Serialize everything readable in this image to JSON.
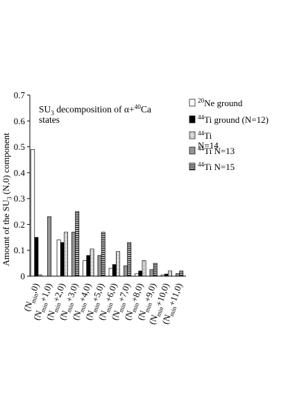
{
  "chart_data": {
    "type": "bar",
    "title": "SU3 decomposition of α+40Ca states",
    "title_rich": {
      "line1": [
        {
          "t": "SU",
          "s": "n"
        },
        {
          "t": "3",
          "s": "sub"
        },
        {
          "t": " decomposition of ",
          "s": "n"
        },
        {
          "t": "α",
          "s": "n"
        },
        {
          "t": "+",
          "s": "n"
        },
        {
          "t": "40",
          "s": "sup"
        },
        {
          "t": "Ca",
          "s": "n"
        }
      ],
      "line2": [
        {
          "t": "states",
          "s": "n"
        }
      ]
    },
    "ylabel": "Amount of the SU3 (N,0) component",
    "ylabel_rich": [
      {
        "t": "Amount of the SU",
        "s": "n"
      },
      {
        "t": "3",
        "s": "sub"
      },
      {
        "t": " (N,0) component",
        "s": "n"
      }
    ],
    "xlabel": "",
    "ylim": [
      0,
      0.7
    ],
    "yticks": [
      0,
      0.1,
      0.2,
      0.3,
      0.4,
      0.5,
      0.6,
      0.7
    ],
    "ytick_labels": [
      "0",
      "0.1",
      "0.2",
      "0.3",
      "0.4",
      "0.5",
      "0.6",
      "0.7"
    ],
    "categories": [
      "(Nmin,0)",
      "(Nmin+1,0)",
      "(Nmin+2,0)",
      "(Nmin+3,0)",
      "(Nmin+4,0)",
      "(Nmin+5,0)",
      "(Nmin+6,0)",
      "(Nmin+7,0)",
      "(Nmin+8,0)",
      "(Nmin+9,0)",
      "(Nmin+10,0)",
      "(Nmin+11,0)"
    ],
    "category_rich": [
      [
        {
          "t": "(N",
          "s": "n"
        },
        {
          "t": "min",
          "s": "sub"
        },
        {
          "t": ",0)",
          "s": "n"
        }
      ],
      [
        {
          "t": "(N",
          "s": "n"
        },
        {
          "t": "min",
          "s": "sub"
        },
        {
          "t": "+1,0)",
          "s": "n"
        }
      ],
      [
        {
          "t": "(N",
          "s": "n"
        },
        {
          "t": "min",
          "s": "sub"
        },
        {
          "t": "+2,0)",
          "s": "n"
        }
      ],
      [
        {
          "t": "(N",
          "s": "n"
        },
        {
          "t": "min",
          "s": "sub"
        },
        {
          "t": "+3,0)",
          "s": "n"
        }
      ],
      [
        {
          "t": "(N",
          "s": "n"
        },
        {
          "t": "min",
          "s": "sub"
        },
        {
          "t": "+4,0)",
          "s": "n"
        }
      ],
      [
        {
          "t": "(N",
          "s": "n"
        },
        {
          "t": "min",
          "s": "sub"
        },
        {
          "t": "+5,0)",
          "s": "n"
        }
      ],
      [
        {
          "t": "(N",
          "s": "n"
        },
        {
          "t": "min",
          "s": "sub"
        },
        {
          "t": "+6,0)",
          "s": "n"
        }
      ],
      [
        {
          "t": "(N",
          "s": "n"
        },
        {
          "t": "min",
          "s": "sub"
        },
        {
          "t": "+7,0)",
          "s": "n"
        }
      ],
      [
        {
          "t": "(N",
          "s": "n"
        },
        {
          "t": "min",
          "s": "sub"
        },
        {
          "t": "+8,0)",
          "s": "n"
        }
      ],
      [
        {
          "t": "(N",
          "s": "n"
        },
        {
          "t": "min",
          "s": "sub"
        },
        {
          "t": "+9,0)",
          "s": "n"
        }
      ],
      [
        {
          "t": "(N",
          "s": "n"
        },
        {
          "t": "min",
          "s": "sub"
        },
        {
          "t": "+10,0)",
          "s": "n"
        }
      ],
      [
        {
          "t": "(N",
          "s": "n"
        },
        {
          "t": "min",
          "s": "sub"
        },
        {
          "t": "+11,0)",
          "s": "n"
        }
      ]
    ],
    "series": [
      {
        "name": "20Ne ground",
        "legend_rich": [
          {
            "t": "20",
            "s": "sup"
          },
          {
            "t": "Ne ground",
            "s": "n"
          }
        ],
        "pattern": "white",
        "values": [
          0.49,
          null,
          0.14,
          null,
          0.06,
          null,
          0.03,
          null,
          0.01,
          null,
          0.005,
          null
        ]
      },
      {
        "name": "44Ti ground (N=12)",
        "legend_rich": [
          {
            "t": "44",
            "s": "sup"
          },
          {
            "t": "Ti ground (N=12)",
            "s": "n"
          }
        ],
        "pattern": "black",
        "values": [
          0.15,
          null,
          0.13,
          null,
          0.08,
          null,
          0.045,
          null,
          0.02,
          null,
          0.008,
          null
        ]
      },
      {
        "name": "44Ti N=14",
        "legend_rich": [
          {
            "t": "44",
            "s": "sup"
          },
          {
            "t": "Ti",
            "s": "n"
          }
        ],
        "legend_rich2": [
          {
            "t": "N=14",
            "s": "n"
          }
        ],
        "pattern": "dots",
        "values": [
          0.005,
          null,
          0.17,
          null,
          0.105,
          null,
          0.095,
          null,
          0.06,
          null,
          0.02,
          null
        ]
      },
      {
        "name": "44Ti N=13",
        "legend_rich": [
          {
            "t": "44",
            "s": "sup"
          },
          {
            "t": "Ti N=13",
            "s": "n"
          }
        ],
        "pattern": "checker",
        "values": [
          null,
          0.23,
          null,
          0.17,
          null,
          0.08,
          null,
          0.04,
          null,
          0.025,
          null,
          0.01
        ]
      },
      {
        "name": "44Ti N=15",
        "legend_rich": [
          {
            "t": "44",
            "s": "sup"
          },
          {
            "t": "Ti N=15",
            "s": "n"
          }
        ],
        "pattern": "hlines",
        "values": [
          null,
          null,
          null,
          0.25,
          null,
          0.17,
          null,
          0.13,
          null,
          0.05,
          null,
          0.02
        ]
      }
    ],
    "grid": false,
    "legend_position": "top-right"
  }
}
